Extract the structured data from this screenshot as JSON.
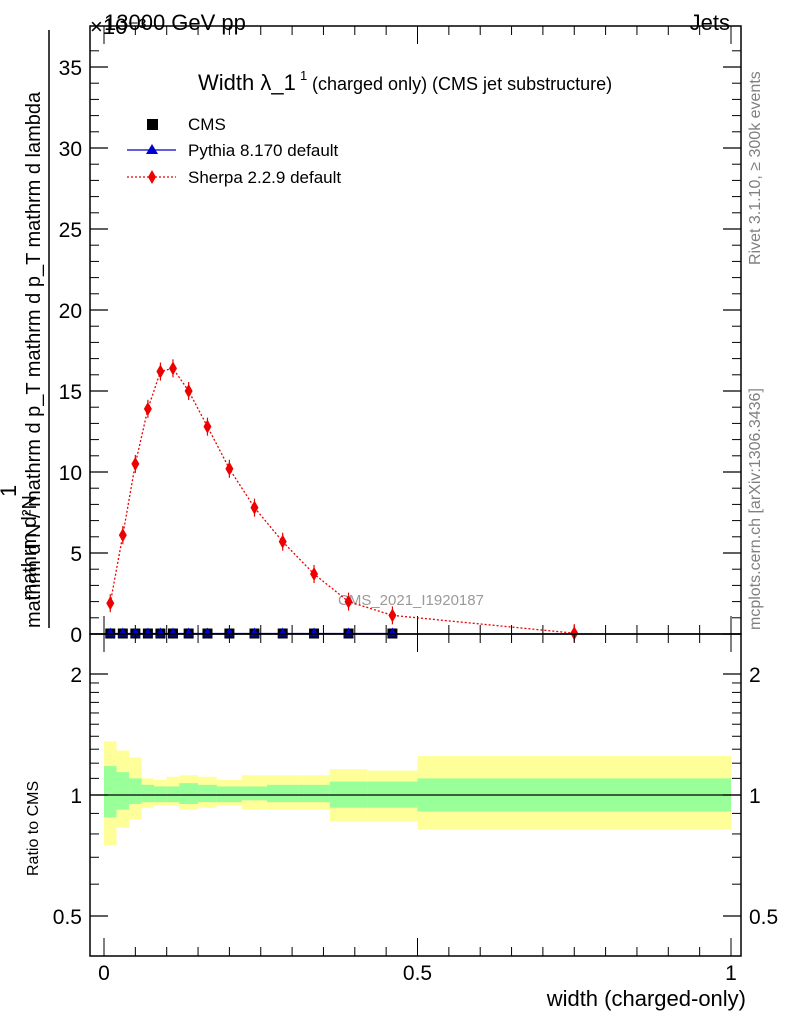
{
  "header": {
    "left": "13000 GeV pp",
    "right": "Jets",
    "exponent": "×10⁻³"
  },
  "side_labels": {
    "rivet": "Rivet 3.1.10, ≥ 300k events",
    "mcplots": "mcplots.cern.ch [arXiv:1306.3436]"
  },
  "watermark": "CMS_2021_I1920187",
  "colors": {
    "cms": "#000000",
    "pythia": "#0000cc",
    "sherpa": "#ee0000",
    "band_inner": "#99ff99",
    "band_outer": "#ffff99"
  },
  "chart_data": [
    {
      "type": "scatter",
      "title_main": "Width λ_1",
      "title_sup": "1",
      "title_rest": "(charged only) (CMS jet substructure)",
      "ylabel_top": "1",
      "ylabel_numer": "mathrm d²N",
      "ylabel_denom": "mathrm d N / mathrm d p_T mathrm d p_T mathrm d lambda",
      "ylim": [
        0,
        37
      ],
      "yticks": [
        0,
        5,
        10,
        15,
        20,
        25,
        30,
        35
      ],
      "xlim": [
        -0.01,
        1.0
      ],
      "legend_position": "top-left",
      "legend": [
        "CMS",
        "Pythia 8.170 default",
        "Sherpa 2.2.9 default"
      ],
      "series": [
        {
          "name": "CMS",
          "marker": "square",
          "x": [
            0.01,
            0.03,
            0.05,
            0.07,
            0.09,
            0.11,
            0.135,
            0.165,
            0.2,
            0.24,
            0.285,
            0.335,
            0.39,
            0.46
          ],
          "y": [
            0.03,
            0.03,
            0.03,
            0.03,
            0.03,
            0.03,
            0.03,
            0.03,
            0.03,
            0.03,
            0.03,
            0.03,
            0.03,
            0.03
          ]
        },
        {
          "name": "Pythia 8.170 default",
          "marker": "triangle",
          "x": [
            0.01,
            0.03,
            0.05,
            0.07,
            0.09,
            0.11,
            0.135,
            0.165,
            0.2,
            0.24,
            0.285,
            0.335,
            0.39,
            0.46
          ],
          "y": [
            0.03,
            0.03,
            0.03,
            0.03,
            0.03,
            0.03,
            0.03,
            0.03,
            0.03,
            0.03,
            0.03,
            0.03,
            0.03,
            0.03
          ]
        },
        {
          "name": "Sherpa 2.2.9 default",
          "marker": "diamond",
          "x": [
            0.01,
            0.03,
            0.05,
            0.07,
            0.09,
            0.11,
            0.135,
            0.165,
            0.2,
            0.24,
            0.285,
            0.335,
            0.39,
            0.46,
            0.75
          ],
          "y": [
            1.9,
            6.1,
            10.5,
            13.9,
            16.2,
            16.4,
            15.0,
            12.8,
            10.2,
            7.8,
            5.7,
            3.7,
            2.0,
            1.15,
            0.05
          ]
        }
      ]
    },
    {
      "type": "area",
      "ylabel": "Ratio to CMS",
      "xlabel": "width (charged-only)",
      "ylim": [
        0.42,
        2.3
      ],
      "ylog": true,
      "yticks": [
        0.5,
        1,
        2
      ],
      "ytick_labels": [
        "0.5",
        "1",
        "2"
      ],
      "xlim": [
        -0.01,
        1.0
      ],
      "xticks": [
        0,
        0.5,
        1
      ],
      "xtick_labels": [
        "0",
        "0.5",
        "1"
      ],
      "bins": [
        0,
        0.02,
        0.04,
        0.06,
        0.08,
        0.1,
        0.12,
        0.15,
        0.18,
        0.22,
        0.26,
        0.31,
        0.36,
        0.42,
        0.5,
        1.0
      ],
      "inner_lo": [
        0.88,
        0.92,
        0.95,
        0.96,
        0.96,
        0.96,
        0.95,
        0.96,
        0.96,
        0.97,
        0.96,
        0.96,
        0.93,
        0.93,
        0.91
      ],
      "inner_hi": [
        1.18,
        1.14,
        1.1,
        1.06,
        1.05,
        1.05,
        1.07,
        1.06,
        1.05,
        1.05,
        1.06,
        1.06,
        1.08,
        1.08,
        1.1
      ],
      "outer_lo": [
        0.75,
        0.83,
        0.87,
        0.93,
        0.94,
        0.94,
        0.92,
        0.93,
        0.94,
        0.92,
        0.92,
        0.92,
        0.86,
        0.86,
        0.82
      ],
      "outer_hi": [
        1.36,
        1.29,
        1.24,
        1.1,
        1.09,
        1.11,
        1.12,
        1.11,
        1.09,
        1.12,
        1.12,
        1.12,
        1.16,
        1.15,
        1.25
      ],
      "reference": 1
    }
  ]
}
